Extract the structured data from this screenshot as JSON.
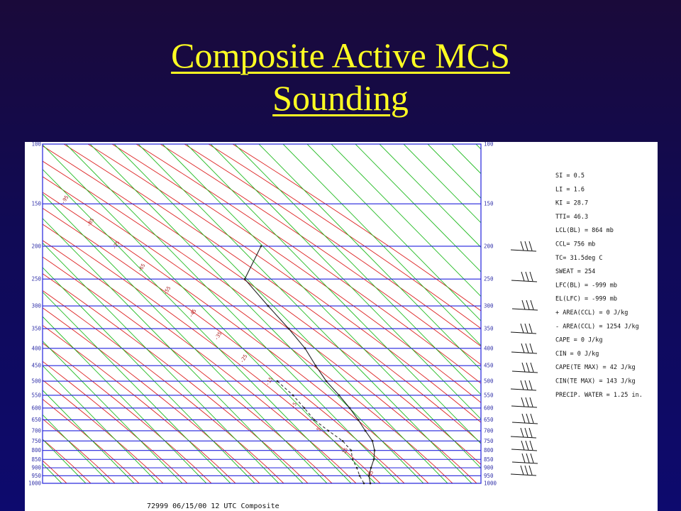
{
  "slide": {
    "title_line1": "Composite Active MCS",
    "title_line2": "Sounding"
  },
  "skewt": {
    "pressure_levels": [
      100,
      150,
      200,
      250,
      300,
      350,
      400,
      450,
      500,
      550,
      600,
      650,
      700,
      750,
      800,
      850,
      900,
      950,
      1000
    ],
    "temperature_labels": [
      "-95",
      "-85",
      "-75",
      "-65",
      "-55",
      "-45",
      "-35",
      "-25",
      "-15",
      "-5",
      "5",
      "15",
      "25"
    ],
    "indices": [
      "SI = 0.5",
      "LI = 1.6",
      "KI = 28.7",
      "TTI= 46.3",
      "LCL(BL) = 864 mb",
      "CCL= 756 mb",
      "TC= 31.5deg C",
      "SWEAT = 254",
      "LFC(BL) = -999 mb",
      "EL(LFC) = -999 mb",
      "+ AREA(CCL) = 0 J/kg",
      "- AREA(CCL) = 1254 J/kg",
      "CAPE = 0 J/kg",
      "CIN = 0 J/kg",
      "CAPE(TE MAX) = 42 J/kg",
      "CIN(TE MAX) = 143 J/kg",
      "PRECIP. WATER = 1.25 in."
    ],
    "footer": "72999 06/15/00 12 UTC Composite",
    "colors": {
      "isobar": "#2222dd",
      "isotherm": "#22bb22",
      "dry_adiabat": "#dd2222",
      "profile": "#222222"
    }
  }
}
